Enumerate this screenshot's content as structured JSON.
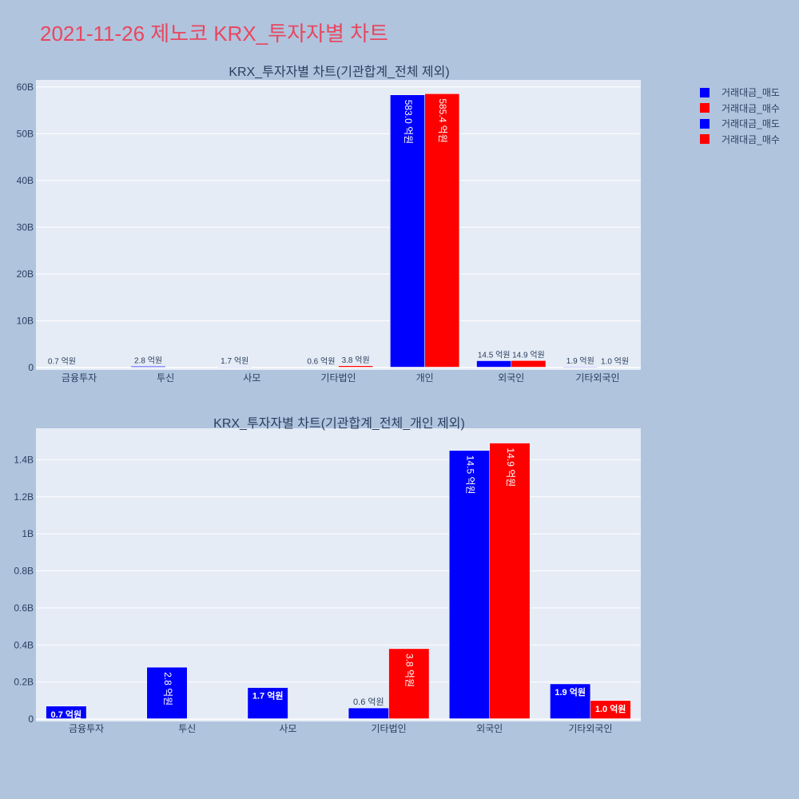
{
  "page": {
    "title": "2021-11-26 제노코 KRX_투자자별 차트"
  },
  "colors": {
    "background": "#b0c4de",
    "plot_bg": "#e5ecf6",
    "title": "#e8475f",
    "sell": "#0000ff",
    "buy": "#ff0000",
    "text": "#2a3f5f"
  },
  "legend": [
    {
      "label": "거래대금_매도",
      "color": "#0000ff"
    },
    {
      "label": "거래대금_매수",
      "color": "#ff0000"
    },
    {
      "label": "거래대금_매도",
      "color": "#0000ff"
    },
    {
      "label": "거래대금_매수",
      "color": "#ff0000"
    }
  ],
  "chart_data": [
    {
      "type": "bar",
      "title": "KRX_투자자별 차트(기관합계_전체 제외)",
      "categories": [
        "금융투자",
        "투신",
        "사모",
        "기타법인",
        "개인",
        "외국인",
        "기타외국인"
      ],
      "series": [
        {
          "name": "거래대금_매도",
          "color": "#0000ff",
          "values": [
            0.07,
            0.28,
            0.17,
            0.06,
            58.3,
            1.45,
            0.19
          ],
          "labels": [
            "0.7 억원",
            "2.8 억원",
            "1.7 억원",
            "0.6 억원",
            "583.0 억원",
            "14.5 억원",
            "1.9 억원"
          ]
        },
        {
          "name": "거래대금_매수",
          "color": "#ff0000",
          "values": [
            0,
            0,
            0,
            0.38,
            58.54,
            1.49,
            0.1
          ],
          "labels": [
            null,
            null,
            null,
            "3.8 억원",
            "585.4 억원",
            "14.9 억원",
            "1.0 억원"
          ]
        }
      ],
      "yticks": [
        0,
        10,
        20,
        30,
        40,
        50,
        60
      ],
      "ytick_labels": [
        "0",
        "10B",
        "20B",
        "30B",
        "40B",
        "50B",
        "60B"
      ],
      "ylim": [
        0,
        61.5
      ],
      "grid": true
    },
    {
      "type": "bar",
      "title": "KRX_투자자별 차트(기관합계_전체_개인 제외)",
      "categories": [
        "금융투자",
        "투신",
        "사모",
        "기타법인",
        "외국인",
        "기타외국인"
      ],
      "series": [
        {
          "name": "거래대금_매도",
          "color": "#0000ff",
          "values": [
            0.07,
            0.28,
            0.17,
            0.06,
            1.45,
            0.19
          ],
          "labels": [
            "0.7 억원",
            "2.8 억원",
            "1.7 억원",
            "0.6 억원",
            "14.5 억원",
            "1.9 억원"
          ]
        },
        {
          "name": "거래대금_매수",
          "color": "#ff0000",
          "values": [
            0,
            0,
            0,
            0.38,
            1.49,
            0.1
          ],
          "labels": [
            null,
            null,
            null,
            "3.8 억원",
            "14.9 억원",
            "1.0 억원"
          ]
        }
      ],
      "yticks": [
        0,
        0.2,
        0.4,
        0.6,
        0.8,
        1.0,
        1.2,
        1.4
      ],
      "ytick_labels": [
        "0",
        "0.2B",
        "0.4B",
        "0.6B",
        "0.8B",
        "1B",
        "1.2B",
        "1.4B"
      ],
      "ylim": [
        0,
        1.57
      ],
      "grid": true
    }
  ]
}
